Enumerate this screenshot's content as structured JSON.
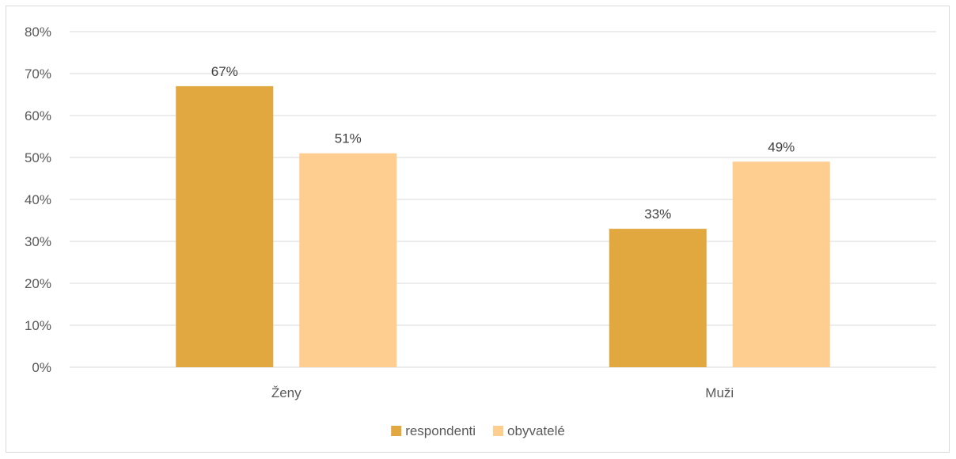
{
  "chart_data": {
    "type": "bar",
    "title": "",
    "xlabel": "",
    "ylabel": "",
    "categories": [
      "Ženy",
      "Muži"
    ],
    "series": [
      {
        "name": "respondenti",
        "values": [
          67,
          33
        ],
        "color": "#E0A83E"
      },
      {
        "name": "obyvatelé",
        "values": [
          51,
          49
        ],
        "color": "#FDCE8F"
      }
    ],
    "ylim": [
      0,
      80
    ],
    "yticks": [
      0,
      10,
      20,
      30,
      40,
      50,
      60,
      70,
      80
    ],
    "value_format": "percent",
    "grid": true,
    "gridline_color": "#d9d9d9",
    "legend_position": "bottom"
  }
}
